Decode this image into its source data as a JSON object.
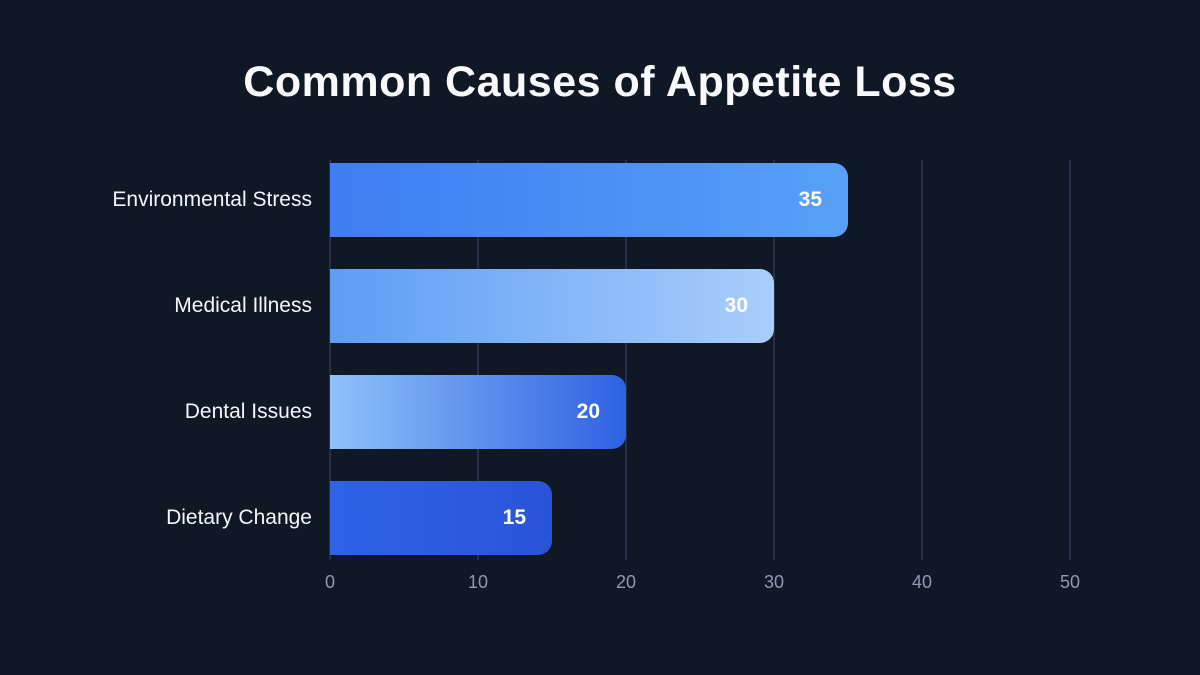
{
  "chart_data": {
    "type": "bar",
    "orientation": "horizontal",
    "title": "Common Causes of Appetite Loss",
    "categories": [
      "Environmental Stress",
      "Medical Illness",
      "Dental Issues",
      "Dietary Change"
    ],
    "values": [
      35,
      30,
      20,
      15
    ],
    "xlabel": "",
    "ylabel": "",
    "xlim": [
      0,
      50
    ],
    "xticks": [
      0,
      10,
      20,
      30,
      40,
      50
    ],
    "grid": "vertical-only",
    "legend": "none",
    "value_labels": "inside-end",
    "bar_gradients": [
      [
        "#3e7df2",
        "#58a0f6"
      ],
      [
        "#5d9df4",
        "#a9cefb"
      ],
      [
        "#8fc2f8",
        "#2e61e1"
      ],
      [
        "#2f63e7",
        "#2a54d8"
      ]
    ],
    "colors": {
      "background": "#101826",
      "gridline": "#243049",
      "tick_text": "#8e9ab0",
      "title_text": "#f7f9fc",
      "category_text": "#f3f6fa",
      "value_text": "#ffffff"
    }
  }
}
